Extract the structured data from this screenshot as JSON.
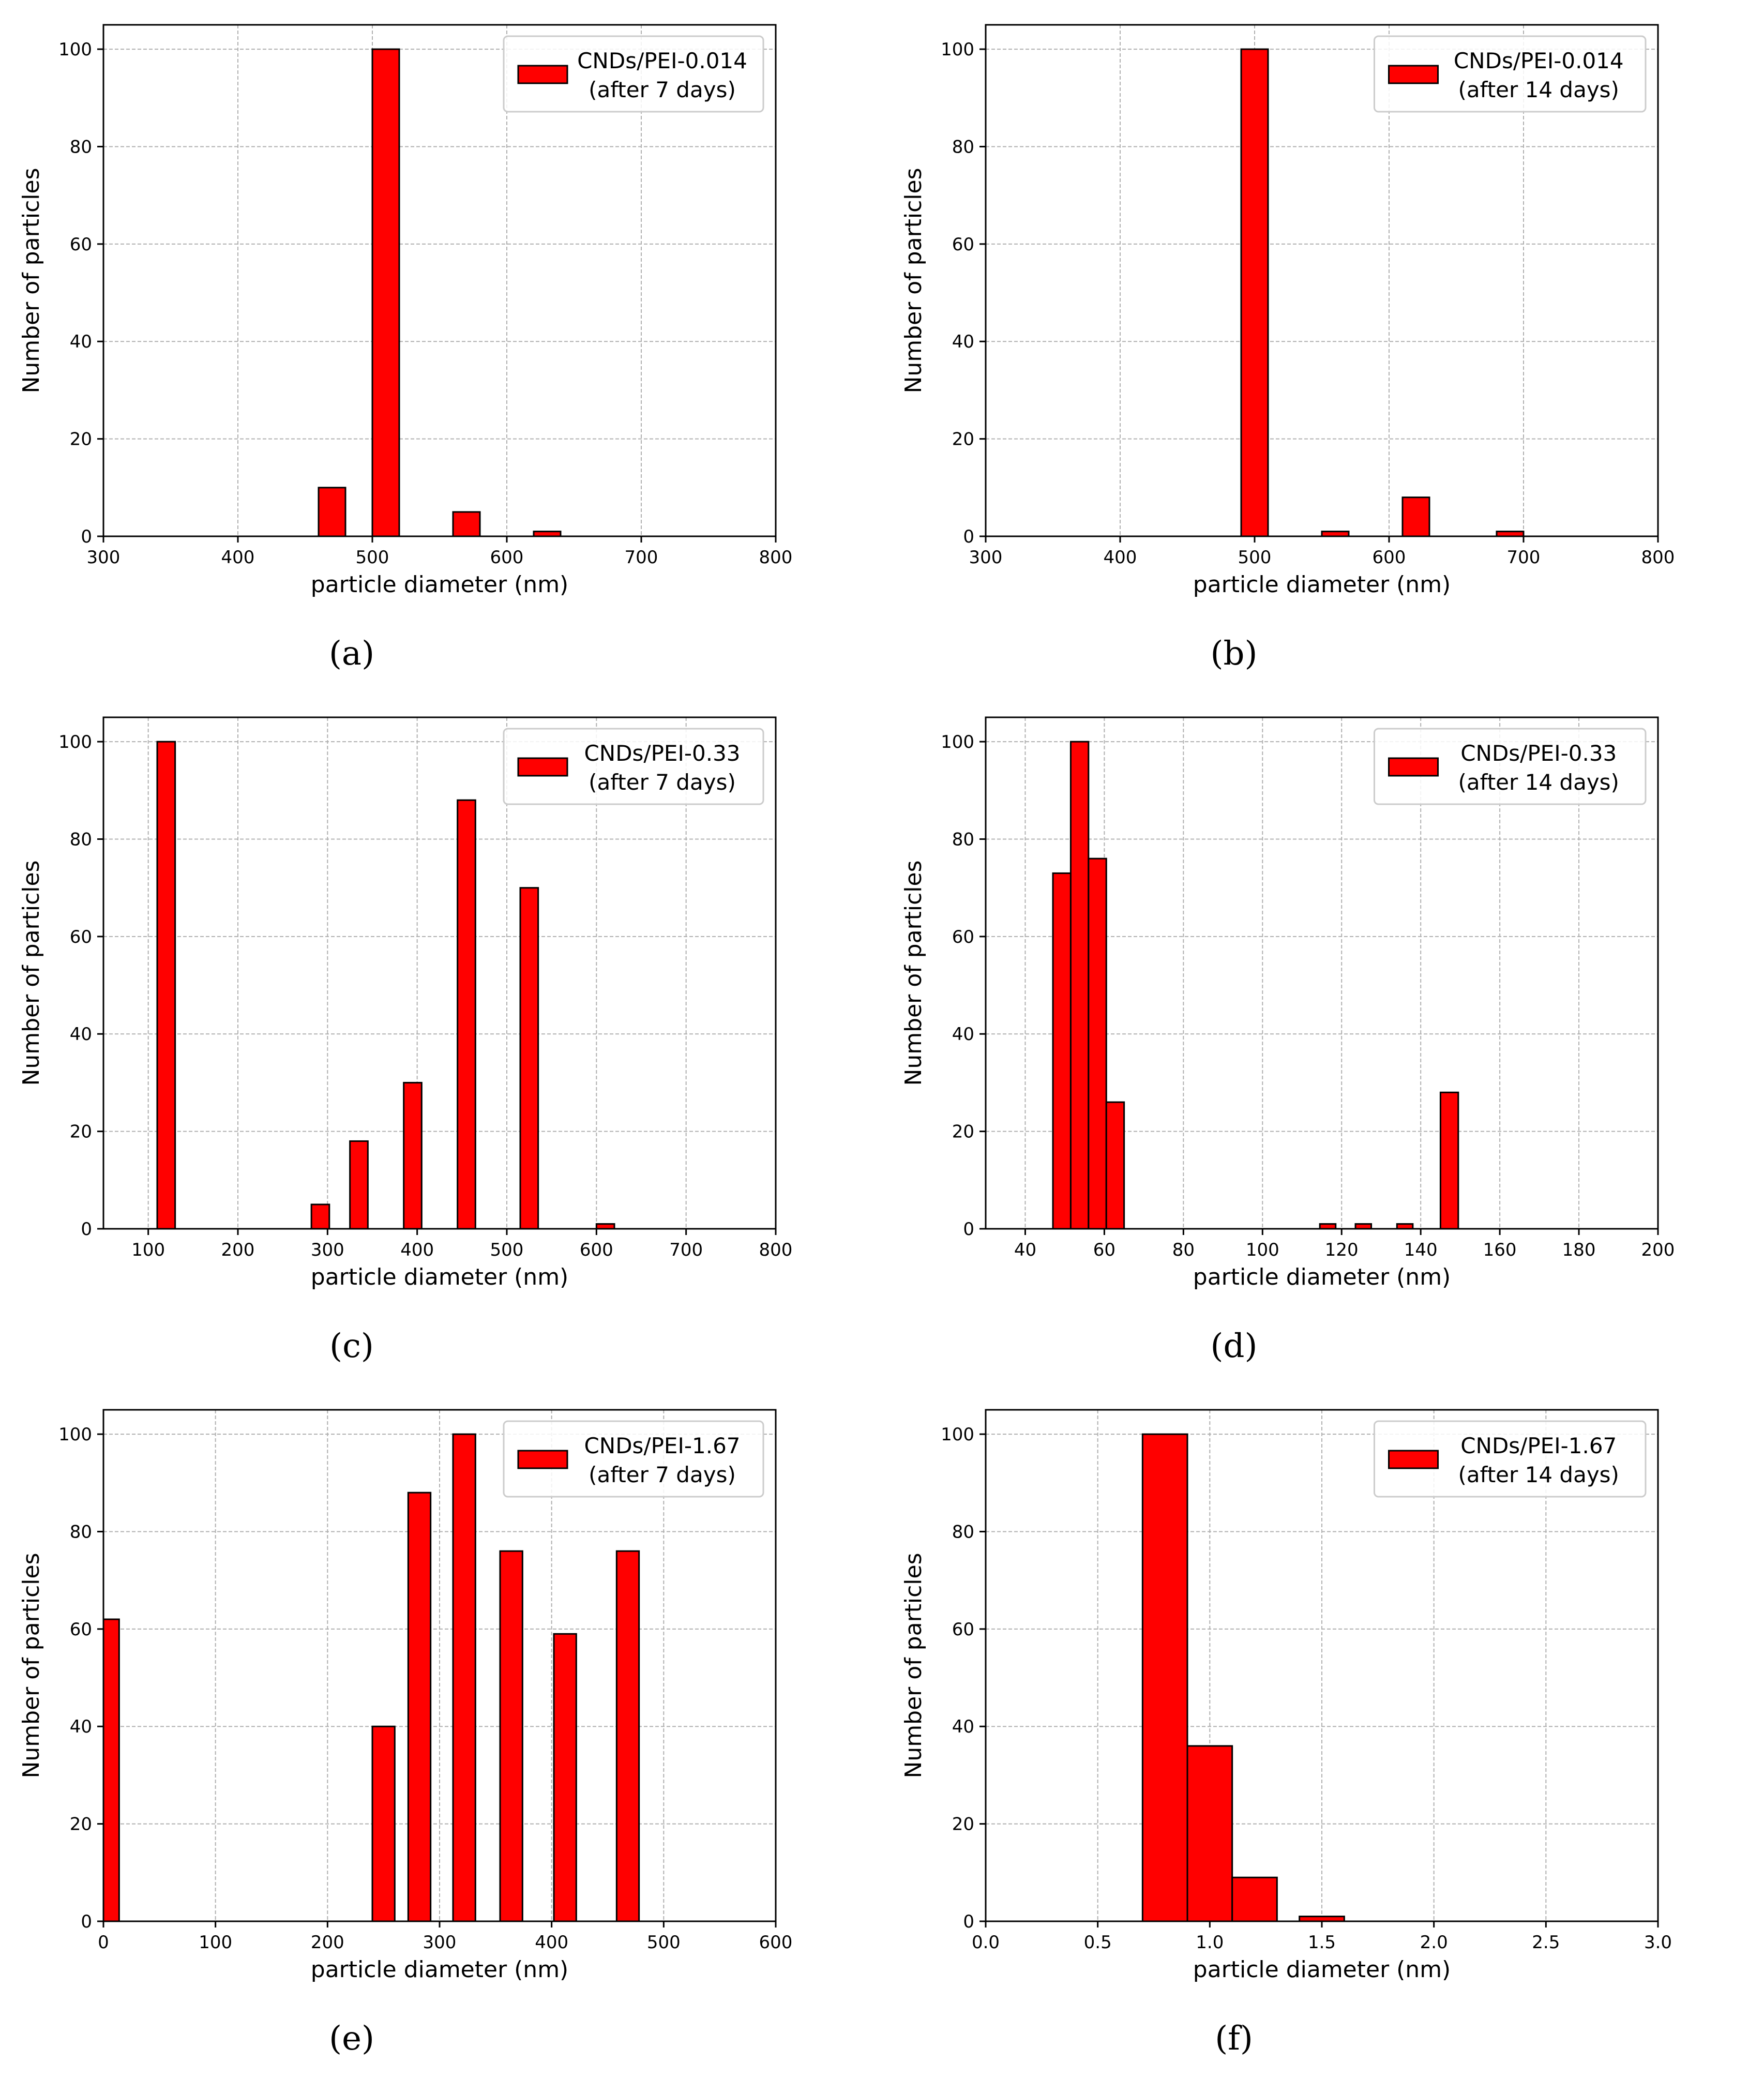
{
  "figure": {
    "bar_color": "#ff0000",
    "edge_color": "#000000",
    "grid_color": "#b0b0b0"
  },
  "chart_data": [
    {
      "panel": "a",
      "caption": "(a)",
      "type": "bar",
      "title": "",
      "legend": [
        "CNDs/PEI-0.014",
        "(after 7 days)"
      ],
      "legend_position": "top-right",
      "xlabel": "particle diameter (nm)",
      "ylabel": "Number of particles",
      "xlim": [
        300,
        800
      ],
      "ylim": [
        0,
        105
      ],
      "xticks": [
        300,
        400,
        500,
        600,
        700,
        800
      ],
      "xtick_labels": [
        "300",
        "400",
        "500",
        "600",
        "700",
        "800"
      ],
      "yticks": [
        0,
        20,
        40,
        60,
        80,
        100
      ],
      "ytick_labels": [
        "0",
        "20",
        "40",
        "60",
        "80",
        "100"
      ],
      "grid": true,
      "bins": [
        {
          "x0": 460,
          "x1": 480,
          "value": 10
        },
        {
          "x0": 500,
          "x1": 520,
          "value": 100
        },
        {
          "x0": 560,
          "x1": 580,
          "value": 5
        },
        {
          "x0": 620,
          "x1": 640,
          "value": 1
        }
      ]
    },
    {
      "panel": "b",
      "caption": "(b)",
      "type": "bar",
      "title": "",
      "legend": [
        "CNDs/PEI-0.014",
        "(after 14 days)"
      ],
      "legend_position": "top-right",
      "xlabel": "particle diameter (nm)",
      "ylabel": "Number of particles",
      "xlim": [
        300,
        800
      ],
      "ylim": [
        0,
        105
      ],
      "xticks": [
        300,
        400,
        500,
        600,
        700,
        800
      ],
      "xtick_labels": [
        "300",
        "400",
        "500",
        "600",
        "700",
        "800"
      ],
      "yticks": [
        0,
        20,
        40,
        60,
        80,
        100
      ],
      "ytick_labels": [
        "0",
        "20",
        "40",
        "60",
        "80",
        "100"
      ],
      "grid": true,
      "bins": [
        {
          "x0": 490,
          "x1": 510,
          "value": 100
        },
        {
          "x0": 550,
          "x1": 570,
          "value": 1
        },
        {
          "x0": 610,
          "x1": 630,
          "value": 8
        },
        {
          "x0": 680,
          "x1": 700,
          "value": 1
        }
      ]
    },
    {
      "panel": "c",
      "caption": "(c)",
      "type": "bar",
      "title": "",
      "legend": [
        "CNDs/PEI-0.33",
        "(after 7 days)"
      ],
      "legend_position": "top-right",
      "xlabel": "particle diameter (nm)",
      "ylabel": "Number of particles",
      "xlim": [
        50,
        800
      ],
      "ylim": [
        0,
        105
      ],
      "xticks": [
        100,
        200,
        300,
        400,
        500,
        600,
        700,
        800
      ],
      "xtick_labels": [
        "100",
        "200",
        "300",
        "400",
        "500",
        "600",
        "700",
        "800"
      ],
      "yticks": [
        0,
        20,
        40,
        60,
        80,
        100
      ],
      "ytick_labels": [
        "0",
        "20",
        "40",
        "60",
        "80",
        "100"
      ],
      "grid": true,
      "bins": [
        {
          "x0": 110,
          "x1": 130,
          "value": 100
        },
        {
          "x0": 282,
          "x1": 302,
          "value": 5
        },
        {
          "x0": 325,
          "x1": 345,
          "value": 18
        },
        {
          "x0": 385,
          "x1": 405,
          "value": 30
        },
        {
          "x0": 445,
          "x1": 465,
          "value": 88
        },
        {
          "x0": 515,
          "x1": 535,
          "value": 70
        },
        {
          "x0": 600,
          "x1": 620,
          "value": 1
        }
      ]
    },
    {
      "panel": "d",
      "caption": "(d)",
      "type": "bar",
      "title": "",
      "legend": [
        "CNDs/PEI-0.33",
        "(after 14 days)"
      ],
      "legend_position": "top-right",
      "xlabel": "particle diameter (nm)",
      "ylabel": "Number of particles",
      "xlim": [
        30,
        200
      ],
      "ylim": [
        0,
        105
      ],
      "xticks": [
        40,
        60,
        80,
        100,
        120,
        140,
        160,
        180,
        200
      ],
      "xtick_labels": [
        "40",
        "60",
        "80",
        "100",
        "120",
        "140",
        "160",
        "180",
        "200"
      ],
      "yticks": [
        0,
        20,
        40,
        60,
        80,
        100
      ],
      "ytick_labels": [
        "0",
        "20",
        "40",
        "60",
        "80",
        "100"
      ],
      "grid": true,
      "bins": [
        {
          "x0": 47,
          "x1": 51.5,
          "value": 73
        },
        {
          "x0": 51.5,
          "x1": 56,
          "value": 100
        },
        {
          "x0": 56,
          "x1": 60.5,
          "value": 76
        },
        {
          "x0": 60.5,
          "x1": 65,
          "value": 26
        },
        {
          "x0": 114.5,
          "x1": 118.5,
          "value": 1
        },
        {
          "x0": 123.5,
          "x1": 127.5,
          "value": 1
        },
        {
          "x0": 134,
          "x1": 138,
          "value": 1
        },
        {
          "x0": 145,
          "x1": 149.5,
          "value": 28
        }
      ]
    },
    {
      "panel": "e",
      "caption": "(e)",
      "type": "bar",
      "title": "",
      "legend": [
        "CNDs/PEI-1.67",
        "(after 7 days)"
      ],
      "legend_position": "top-right",
      "xlabel": "particle diameter (nm)",
      "ylabel": "Number of particles",
      "xlim": [
        0,
        600
      ],
      "ylim": [
        0,
        105
      ],
      "xticks": [
        0,
        100,
        200,
        300,
        400,
        500,
        600
      ],
      "xtick_labels": [
        "0",
        "100",
        "200",
        "300",
        "400",
        "500",
        "600"
      ],
      "yticks": [
        0,
        20,
        40,
        60,
        80,
        100
      ],
      "ytick_labels": [
        "0",
        "20",
        "40",
        "60",
        "80",
        "100"
      ],
      "grid": true,
      "bins": [
        {
          "x0": 0,
          "x1": 14,
          "value": 62
        },
        {
          "x0": 240,
          "x1": 260,
          "value": 40
        },
        {
          "x0": 272,
          "x1": 292,
          "value": 88
        },
        {
          "x0": 312,
          "x1": 332,
          "value": 100
        },
        {
          "x0": 354,
          "x1": 374,
          "value": 76
        },
        {
          "x0": 402,
          "x1": 422,
          "value": 59
        },
        {
          "x0": 458,
          "x1": 478,
          "value": 76
        }
      ]
    },
    {
      "panel": "f",
      "caption": "(f)",
      "type": "bar",
      "title": "",
      "legend": [
        "CNDs/PEI-1.67",
        "(after 14 days)"
      ],
      "legend_position": "top-right",
      "xlabel": "particle diameter (nm)",
      "ylabel": "Number of particles",
      "xlim": [
        0.0,
        3.0
      ],
      "ylim": [
        0,
        105
      ],
      "xticks": [
        0.0,
        0.5,
        1.0,
        1.5,
        2.0,
        2.5,
        3.0
      ],
      "xtick_labels": [
        "0.0",
        "0.5",
        "1.0",
        "1.5",
        "2.0",
        "2.5",
        "3.0"
      ],
      "yticks": [
        0,
        20,
        40,
        60,
        80,
        100
      ],
      "ytick_labels": [
        "0",
        "20",
        "40",
        "60",
        "80",
        "100"
      ],
      "grid": true,
      "bins": [
        {
          "x0": 0.7,
          "x1": 0.9,
          "value": 100
        },
        {
          "x0": 0.9,
          "x1": 1.1,
          "value": 36
        },
        {
          "x0": 1.1,
          "x1": 1.3,
          "value": 9
        },
        {
          "x0": 1.4,
          "x1": 1.6,
          "value": 1
        }
      ]
    }
  ]
}
